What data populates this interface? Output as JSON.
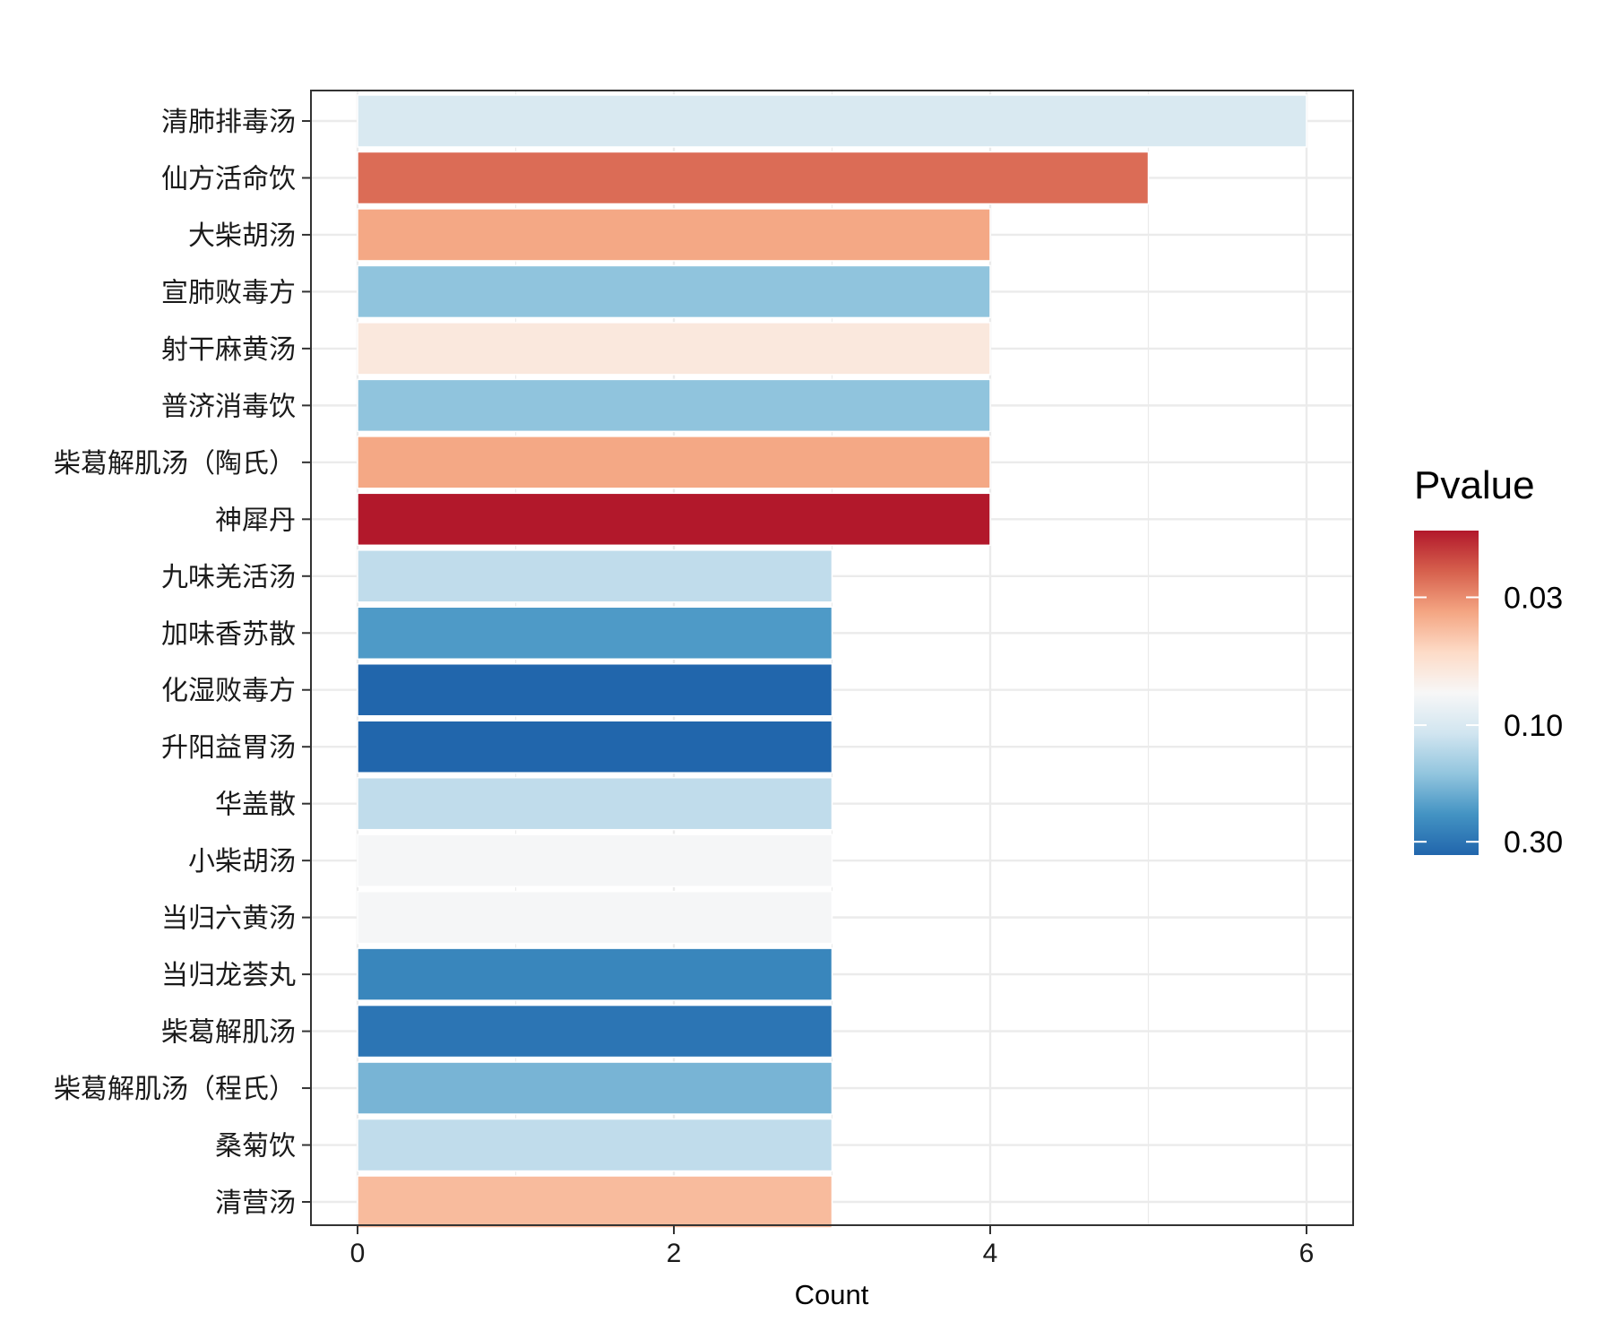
{
  "chart_data": {
    "type": "bar",
    "orientation": "horizontal",
    "categories": [
      "清肺排毒汤",
      "仙方活命饮",
      "大柴胡汤",
      "宣肺败毒方",
      "射干麻黄汤",
      "普济消毒饮",
      "柴葛解肌汤（陶氏）",
      "神犀丹",
      "九味羌活汤",
      "加味香苏散",
      "化湿败毒方",
      "升阳益胃汤",
      "华盖散",
      "小柴胡汤",
      "当归六黄汤",
      "当归龙荟丸",
      "柴葛解肌汤",
      "柴葛解肌汤（程氏）",
      "桑菊饮",
      "清营汤"
    ],
    "values": [
      6,
      5,
      4,
      4,
      4,
      4,
      4,
      4,
      3,
      3,
      3,
      3,
      3,
      3,
      3,
      3,
      3,
      3,
      3,
      3
    ],
    "pvalues": [
      0.1,
      0.025,
      0.035,
      0.16,
      0.06,
      0.16,
      0.035,
      0.016,
      0.12,
      0.22,
      0.34,
      0.34,
      0.12,
      0.075,
      0.075,
      0.26,
      0.3,
      0.18,
      0.12,
      0.04
    ],
    "xlabel": "Count",
    "ylabel": "",
    "xlim": [
      0,
      6
    ],
    "xticks": [
      0,
      2,
      4,
      6
    ],
    "xtick_labels": [
      "0",
      "2",
      "4",
      "6"
    ],
    "grid": true,
    "legend": {
      "title": "Pvalue",
      "placement": "right",
      "scale": "log-reverse",
      "range": [
        0.016,
        0.34
      ],
      "ticks": [
        0.03,
        0.1,
        0.3
      ],
      "tick_labels": [
        "0.03",
        "0.10",
        "0.30"
      ],
      "colors": [
        "#b2182b",
        "#d6604d",
        "#f4a582",
        "#fddbc7",
        "#f7f7f7",
        "#d1e5f0",
        "#92c5de",
        "#4393c3",
        "#2166ac"
      ]
    }
  }
}
